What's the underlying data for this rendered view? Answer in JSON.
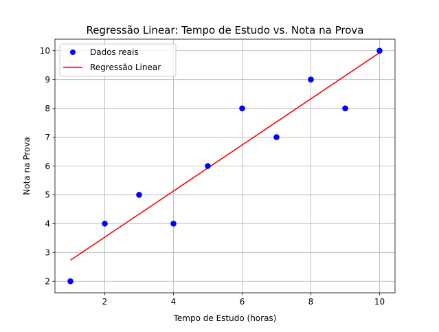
{
  "chart_data": {
    "type": "scatter",
    "title": "Regressão Linear: Tempo de Estudo vs. Nota na Prova",
    "xlabel": "Tempo de Estudo (horas)",
    "ylabel": "Nota na Prova",
    "xlim": [
      0.55,
      10.45
    ],
    "ylim": [
      1.6,
      10.4
    ],
    "xticks": [
      2,
      4,
      6,
      8,
      10
    ],
    "yticks": [
      2,
      3,
      4,
      5,
      6,
      7,
      8,
      9,
      10
    ],
    "grid": true,
    "legend_position": "top-left",
    "series": [
      {
        "name": "Dados reais",
        "kind": "scatter",
        "color": "#0000ff",
        "x": [
          1,
          2,
          3,
          4,
          5,
          6,
          7,
          8,
          9,
          10
        ],
        "y": [
          2,
          4,
          5,
          4,
          6,
          8,
          7,
          9,
          8,
          10
        ]
      },
      {
        "name": "Regressão Linear",
        "kind": "line",
        "color": "#ff0000",
        "x": [
          1,
          10
        ],
        "y": [
          2.73,
          9.93
        ]
      }
    ]
  }
}
